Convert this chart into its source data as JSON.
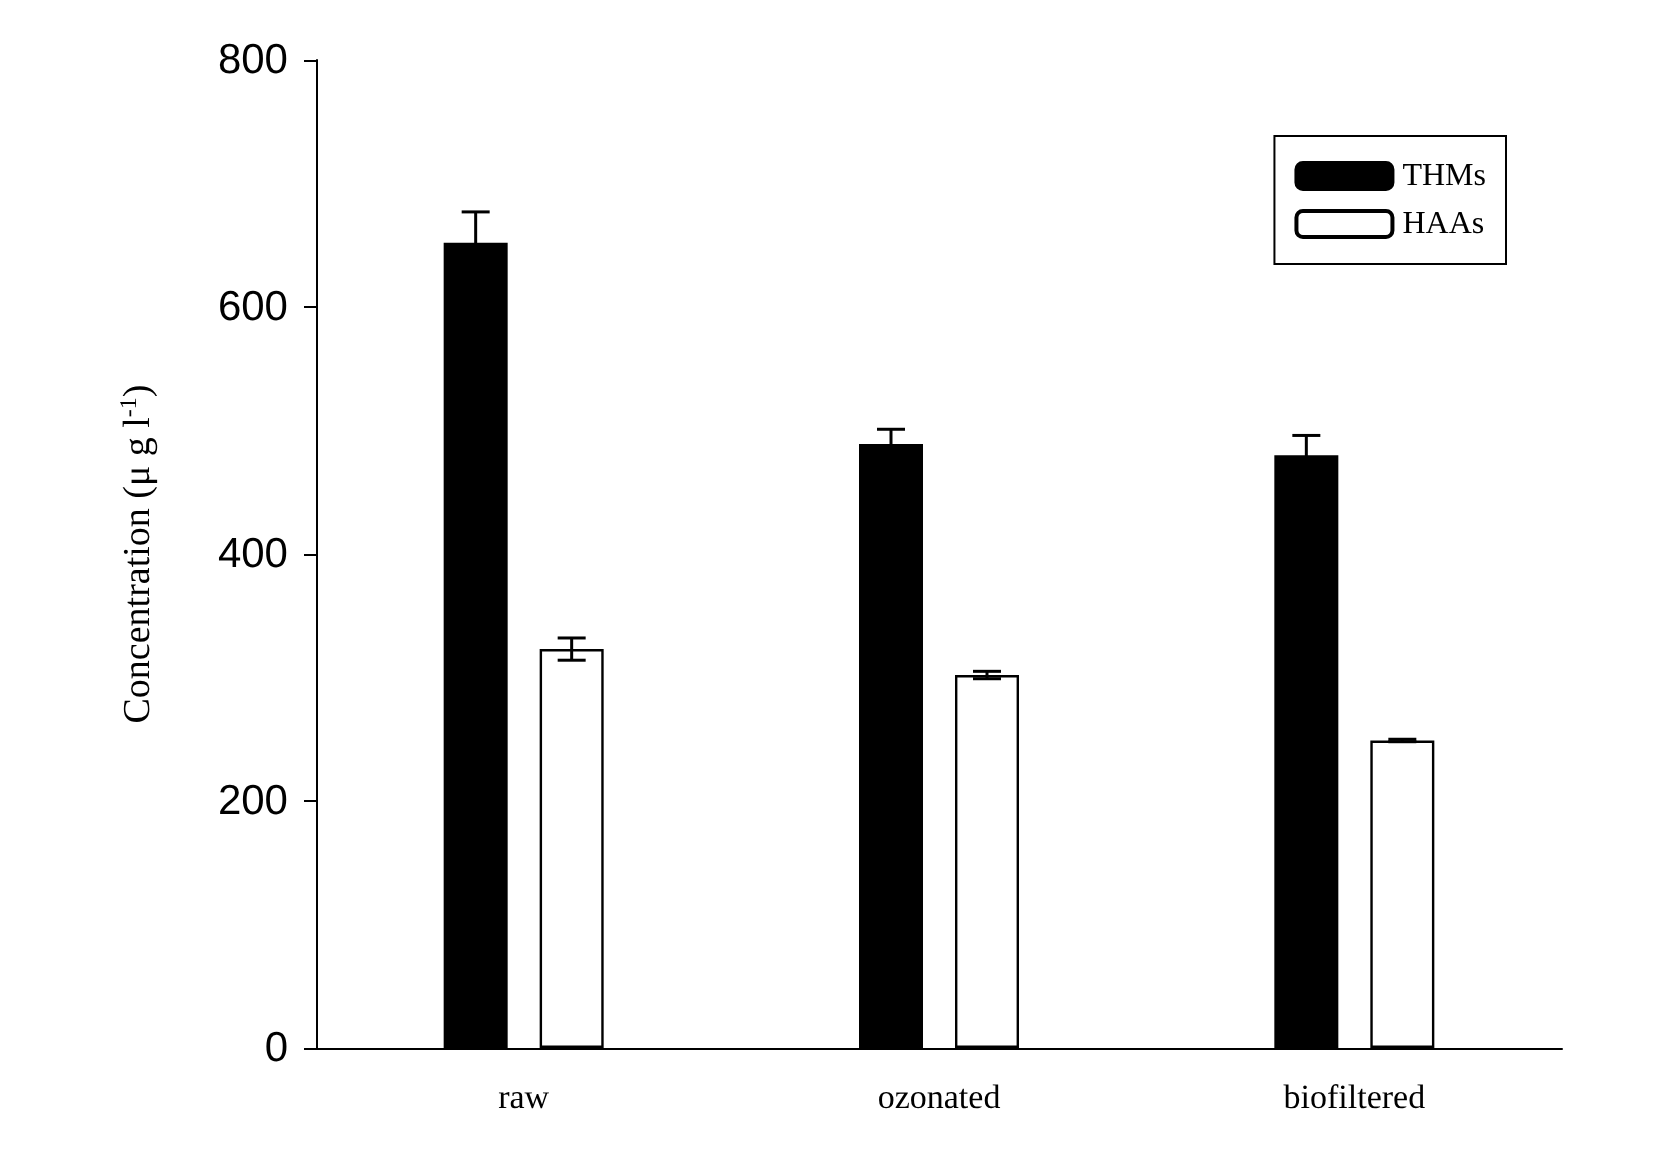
{
  "chart_data": {
    "type": "bar",
    "ylabel": "Concentration (μ g l$^{-1}$)",
    "categories": [
      "raw",
      "ozonated",
      "biofiltered"
    ],
    "series": [
      {
        "name": "THMs",
        "color": "#000000",
        "values": [
          652,
          489,
          480
        ],
        "errors": [
          25,
          12,
          16
        ]
      },
      {
        "name": "HAAs",
        "color": "#ffffff",
        "values": [
          323,
          302,
          249
        ],
        "errors": [
          9,
          3,
          1
        ]
      }
    ],
    "ylim": [
      0,
      800
    ],
    "yticks": [
      0,
      200,
      400,
      600,
      800
    ],
    "grid": false,
    "legend": "top right"
  }
}
